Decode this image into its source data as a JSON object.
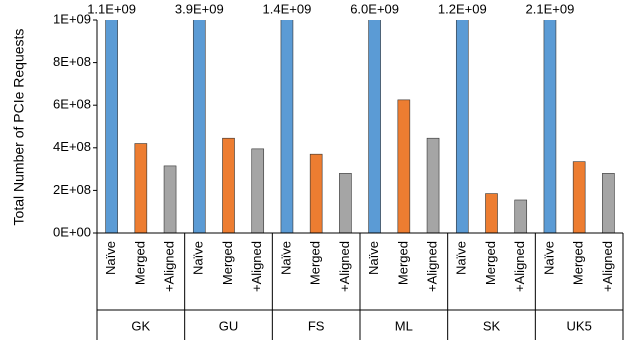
{
  "chart_data": {
    "type": "bar",
    "y_label": "Total Number of PCIe Requests",
    "categories": [
      "GK",
      "GU",
      "FS",
      "ML",
      "SK",
      "UK5"
    ],
    "series": [
      {
        "name": "Naïve",
        "color": "#5b9bd5",
        "values": [
          1100000000,
          3900000000,
          1400000000,
          6000000000,
          1200000000,
          2100000000
        ],
        "value_labels": [
          "1.1E+09",
          "3.9E+09",
          "1.4E+09",
          "6.0E+09",
          "1.2E+09",
          "2.1E+09"
        ]
      },
      {
        "name": "Merged",
        "color": "#ed7d31",
        "values": [
          420000000,
          445000000,
          370000000,
          625000000,
          185000000,
          335000000
        ]
      },
      {
        "name": "+Aligned",
        "color": "#a5a5a5",
        "values": [
          315000000,
          395000000,
          280000000,
          445000000,
          155000000,
          280000000
        ]
      }
    ],
    "ylim": [
      0,
      1000000000
    ],
    "yticks": [
      {
        "value": 0,
        "label": "0E+00"
      },
      {
        "value": 200000000,
        "label": "2E+08"
      },
      {
        "value": 400000000,
        "label": "4E+08"
      },
      {
        "value": 600000000,
        "label": "6E+08"
      },
      {
        "value": 800000000,
        "label": "8E+08"
      },
      {
        "value": 1000000000,
        "label": "1E+09"
      }
    ]
  }
}
